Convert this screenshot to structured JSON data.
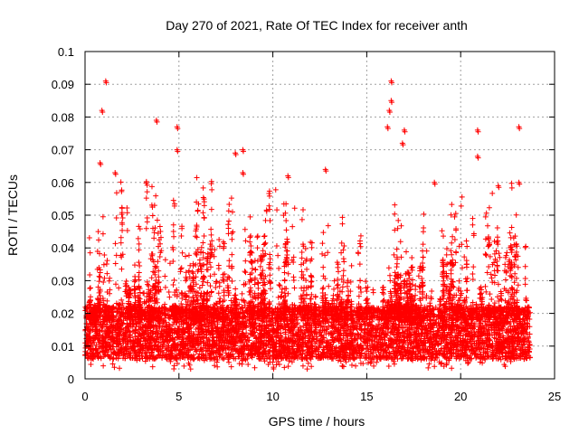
{
  "chart_data": {
    "type": "scatter",
    "title": "Day 270 of 2021, Rate Of TEC Index for receiver anth",
    "xlabel": "GPS time / hours",
    "ylabel": "ROTI / TECUs",
    "xlim": [
      0,
      25
    ],
    "ylim": [
      0,
      0.1
    ],
    "x_ticks": [
      0,
      5,
      10,
      15,
      20,
      25
    ],
    "y_ticks": [
      0,
      0.01,
      0.02,
      0.03,
      0.04,
      0.05,
      0.06,
      0.07,
      0.08,
      0.09,
      0.1
    ],
    "x_tick_labels": [
      "0",
      "5",
      "10",
      "15",
      "20",
      "25"
    ],
    "y_tick_labels": [
      "0",
      "0.01",
      "0.02",
      "0.03",
      "0.04",
      "0.05",
      "0.06",
      "0.07",
      "0.08",
      "0.09",
      "0.1"
    ],
    "grid": true,
    "marker": "plus",
    "color": "#ff0000",
    "data_x_range": [
      0,
      23.7
    ],
    "dense_band": [
      0.006,
      0.022
    ],
    "notable_points": [
      {
        "x": 1.1,
        "y": 0.091
      },
      {
        "x": 0.9,
        "y": 0.082
      },
      {
        "x": 3.8,
        "y": 0.079
      },
      {
        "x": 4.9,
        "y": 0.077
      },
      {
        "x": 4.9,
        "y": 0.07
      },
      {
        "x": 8.0,
        "y": 0.069
      },
      {
        "x": 8.4,
        "y": 0.07
      },
      {
        "x": 8.4,
        "y": 0.063
      },
      {
        "x": 10.8,
        "y": 0.062
      },
      {
        "x": 12.8,
        "y": 0.064
      },
      {
        "x": 16.3,
        "y": 0.091
      },
      {
        "x": 16.3,
        "y": 0.085
      },
      {
        "x": 16.2,
        "y": 0.082
      },
      {
        "x": 16.1,
        "y": 0.077
      },
      {
        "x": 17.0,
        "y": 0.076
      },
      {
        "x": 16.9,
        "y": 0.072
      },
      {
        "x": 20.9,
        "y": 0.076
      },
      {
        "x": 20.9,
        "y": 0.068
      },
      {
        "x": 23.1,
        "y": 0.077
      },
      {
        "x": 23.1,
        "y": 0.06
      },
      {
        "x": 1.6,
        "y": 0.063
      },
      {
        "x": 0.8,
        "y": 0.066
      },
      {
        "x": 18.6,
        "y": 0.06
      },
      {
        "x": 22.0,
        "y": 0.059
      }
    ]
  }
}
